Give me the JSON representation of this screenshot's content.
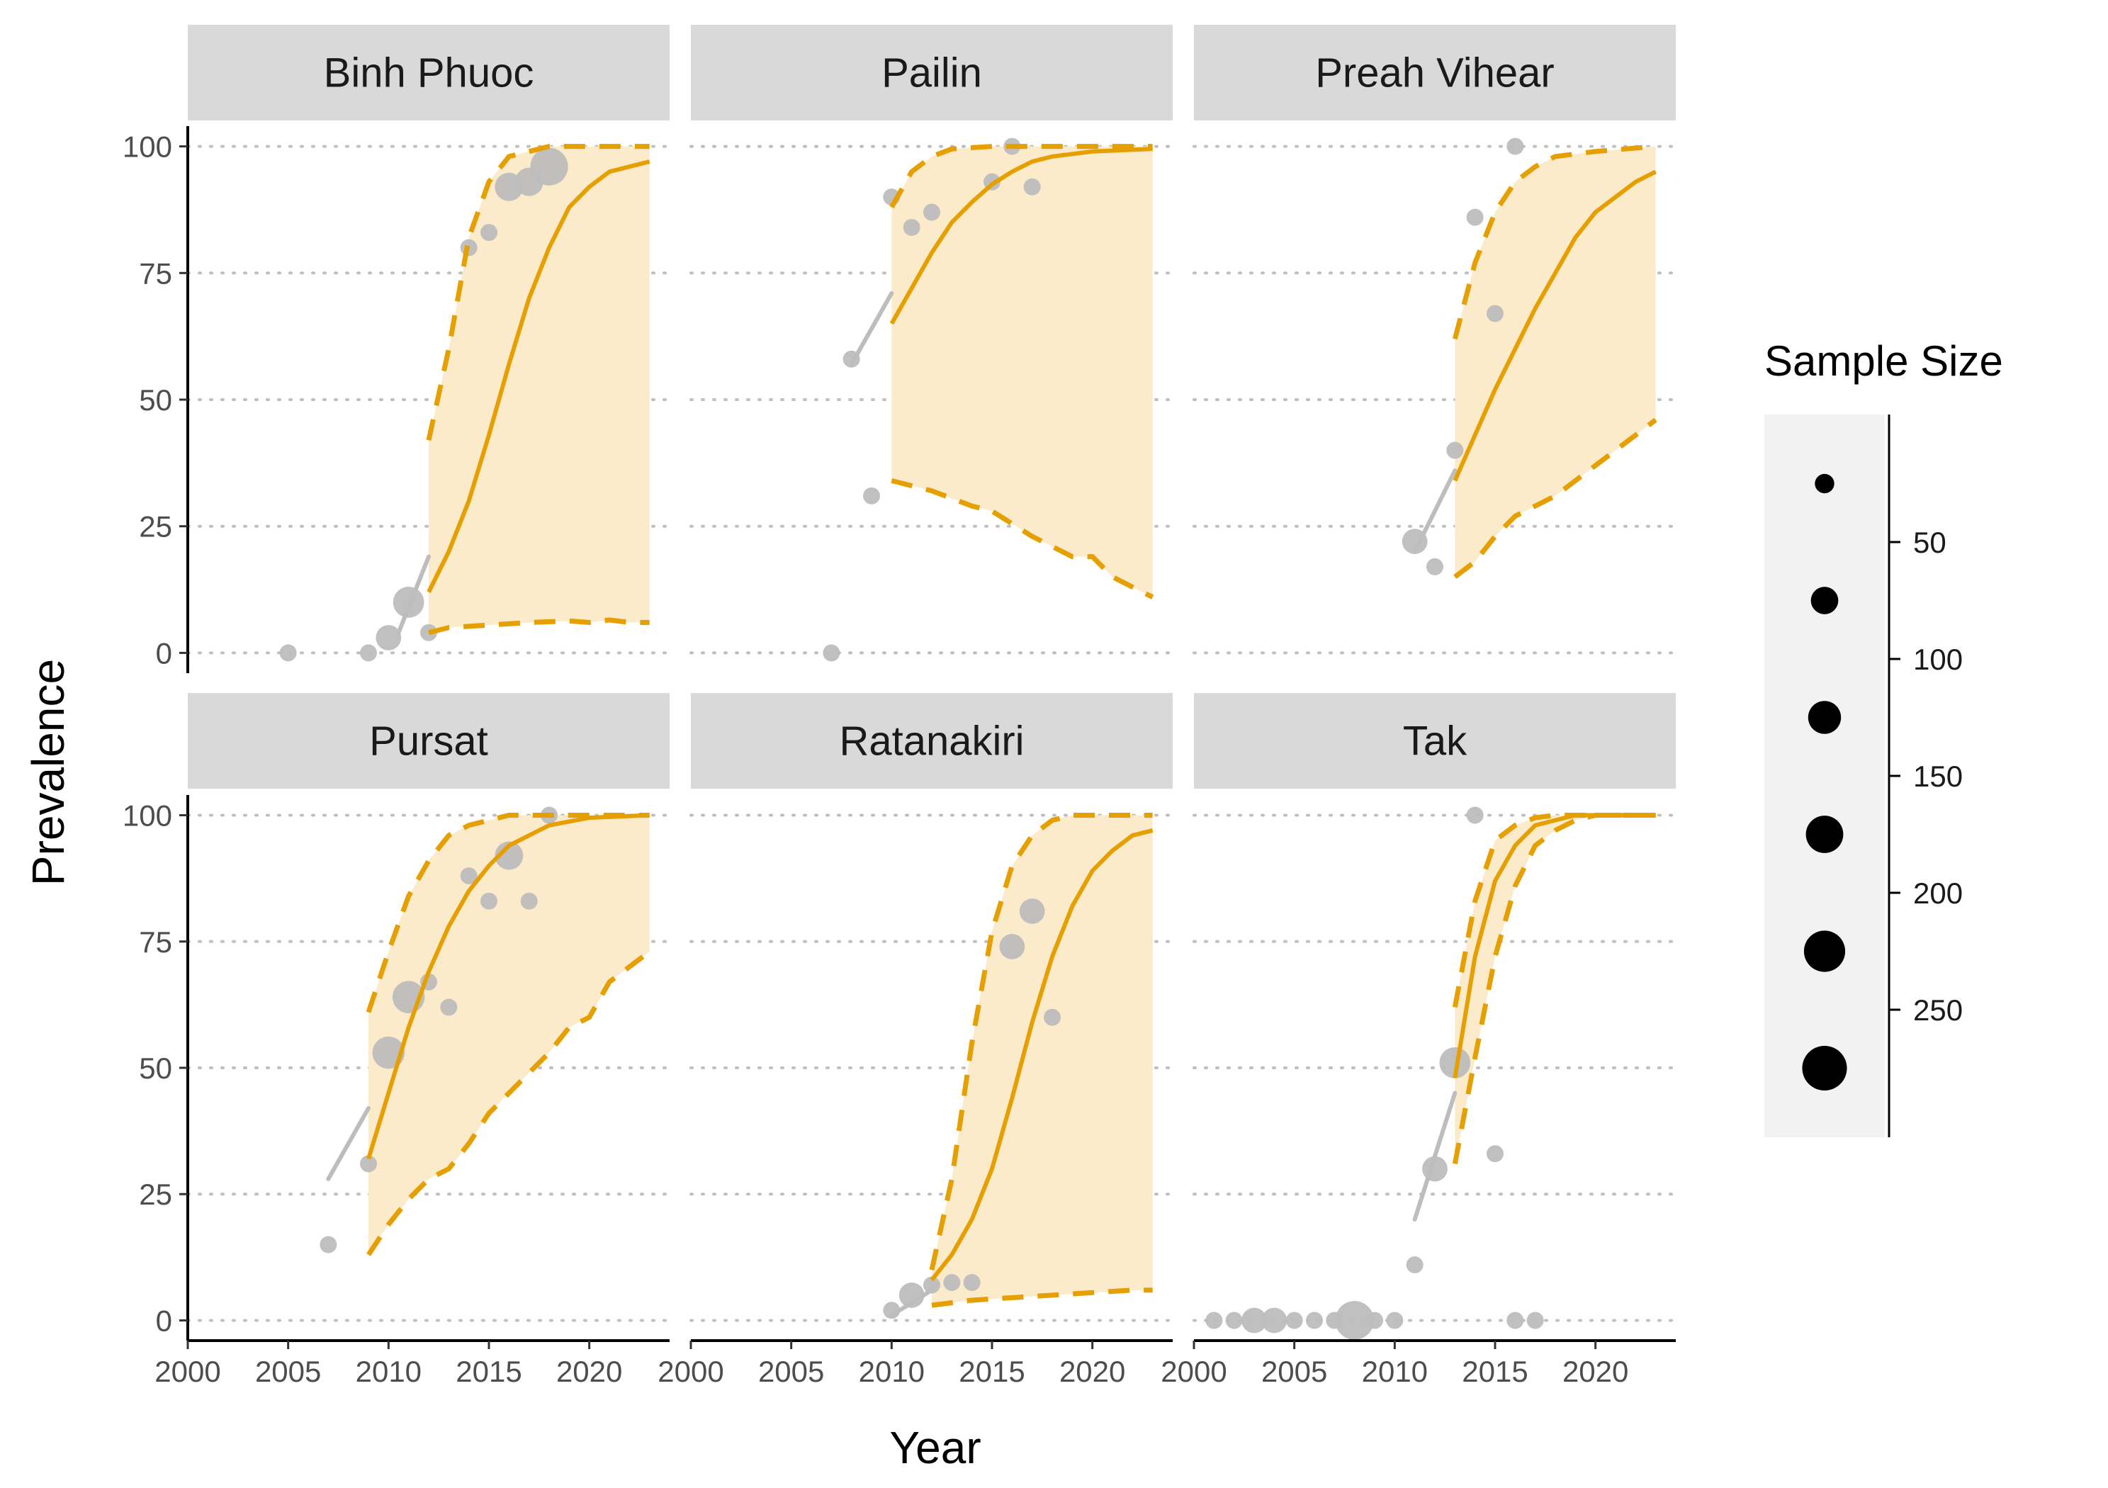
{
  "chart_data": {
    "type": "scatter",
    "title": "",
    "xlabel": "Year",
    "ylabel": "Prevalence",
    "xlim": [
      2000,
      2024
    ],
    "ylim": [
      -4,
      104
    ],
    "x_ticks": [
      2000,
      2005,
      2010,
      2015,
      2020
    ],
    "x_tick_labels": [
      "2000",
      "2005",
      "2010",
      "2015",
      "2020"
    ],
    "y_ticks": [
      0,
      25,
      50,
      75,
      100
    ],
    "y_tick_labels": [
      "0",
      "25",
      "50",
      "75",
      "100"
    ],
    "grid": "horizontal dotted",
    "colors": {
      "points": "#bdbdbd",
      "fit_line": "#e69f00",
      "band_fill": "#fcebca",
      "strip_bg": "#d9d9d9",
      "legend_bg": "#f2f2f2"
    },
    "legend": {
      "title": "Sample Size",
      "placement": "right",
      "labels": [
        "50",
        "100",
        "150",
        "200",
        "250"
      ],
      "label_values": [
        50,
        100,
        150,
        200,
        250
      ],
      "key_values": [
        25,
        75,
        125,
        175,
        225,
        275
      ]
    },
    "panels": [
      {
        "name": "Binh Phuoc",
        "points": [
          {
            "x": 2005,
            "y": 0,
            "n": 20
          },
          {
            "x": 2009,
            "y": 0,
            "n": 20
          },
          {
            "x": 2010,
            "y": 3,
            "n": 60
          },
          {
            "x": 2011,
            "y": 10,
            "n": 100
          },
          {
            "x": 2012,
            "y": 4,
            "n": 20
          },
          {
            "x": 2014,
            "y": 80,
            "n": 20
          },
          {
            "x": 2015,
            "y": 83,
            "n": 20
          },
          {
            "x": 2016,
            "y": 92,
            "n": 80
          },
          {
            "x": 2017,
            "y": 93,
            "n": 80
          },
          {
            "x": 2018,
            "y": 96,
            "n": 160
          }
        ],
        "pre_line": [
          [
            2010.5,
            4
          ],
          [
            2012,
            19
          ]
        ],
        "fit": [
          [
            2012,
            12
          ],
          [
            2013,
            20
          ],
          [
            2014,
            30
          ],
          [
            2015,
            43
          ],
          [
            2016,
            57
          ],
          [
            2017,
            70
          ],
          [
            2018,
            80
          ],
          [
            2019,
            88
          ],
          [
            2020,
            92
          ],
          [
            2021,
            95
          ],
          [
            2022,
            96
          ],
          [
            2023,
            97
          ]
        ],
        "upper": [
          [
            2012,
            42
          ],
          [
            2013,
            60
          ],
          [
            2014,
            82
          ],
          [
            2015,
            93
          ],
          [
            2016,
            98
          ],
          [
            2017,
            99
          ],
          [
            2018,
            100
          ],
          [
            2023,
            100
          ]
        ],
        "lower": [
          [
            2012,
            4
          ],
          [
            2013,
            5
          ],
          [
            2015,
            5.5
          ],
          [
            2017,
            6
          ],
          [
            2019,
            6.3
          ],
          [
            2020,
            6
          ],
          [
            2021,
            6.5
          ],
          [
            2022,
            6
          ],
          [
            2023,
            6
          ]
        ]
      },
      {
        "name": "Pailin",
        "points": [
          {
            "x": 2007,
            "y": 0,
            "n": 20
          },
          {
            "x": 2008,
            "y": 58,
            "n": 20
          },
          {
            "x": 2009,
            "y": 31,
            "n": 20
          },
          {
            "x": 2010,
            "y": 90,
            "n": 20
          },
          {
            "x": 2011,
            "y": 84,
            "n": 20
          },
          {
            "x": 2012,
            "y": 87,
            "n": 20
          },
          {
            "x": 2015,
            "y": 93,
            "n": 20
          },
          {
            "x": 2016,
            "y": 100,
            "n": 20
          },
          {
            "x": 2017,
            "y": 92,
            "n": 20
          }
        ],
        "pre_line": [
          [
            2008,
            57
          ],
          [
            2010,
            71
          ]
        ],
        "fit": [
          [
            2010,
            65
          ],
          [
            2011,
            72
          ],
          [
            2012,
            79
          ],
          [
            2013,
            85
          ],
          [
            2014,
            89
          ],
          [
            2015,
            92.5
          ],
          [
            2016,
            95
          ],
          [
            2017,
            97
          ],
          [
            2018,
            98
          ],
          [
            2020,
            99
          ],
          [
            2023,
            99.5
          ]
        ],
        "upper": [
          [
            2010,
            88
          ],
          [
            2011,
            95
          ],
          [
            2012,
            98
          ],
          [
            2013,
            99.5
          ],
          [
            2015,
            100
          ],
          [
            2023,
            100
          ]
        ],
        "lower": [
          [
            2010,
            34
          ],
          [
            2012,
            32
          ],
          [
            2014,
            29
          ],
          [
            2015,
            28
          ],
          [
            2017,
            23
          ],
          [
            2019,
            19
          ],
          [
            2020,
            19
          ],
          [
            2021,
            15
          ],
          [
            2022,
            13
          ],
          [
            2023,
            11
          ]
        ]
      },
      {
        "name": "Preah Vihear",
        "points": [
          {
            "x": 2011,
            "y": 22,
            "n": 60
          },
          {
            "x": 2012,
            "y": 17,
            "n": 20
          },
          {
            "x": 2013,
            "y": 40,
            "n": 20
          },
          {
            "x": 2014,
            "y": 86,
            "n": 20
          },
          {
            "x": 2015,
            "y": 67,
            "n": 20
          },
          {
            "x": 2016,
            "y": 100,
            "n": 20
          }
        ],
        "pre_line": [
          [
            2011,
            20
          ],
          [
            2013,
            36
          ]
        ],
        "fit": [
          [
            2013,
            34
          ],
          [
            2014,
            43
          ],
          [
            2015,
            52
          ],
          [
            2016,
            60
          ],
          [
            2017,
            68
          ],
          [
            2018,
            75
          ],
          [
            2019,
            82
          ],
          [
            2020,
            87
          ],
          [
            2021,
            90
          ],
          [
            2022,
            93
          ],
          [
            2023,
            95
          ]
        ],
        "upper": [
          [
            2013,
            62
          ],
          [
            2014,
            77
          ],
          [
            2015,
            87
          ],
          [
            2016,
            93
          ],
          [
            2017,
            96
          ],
          [
            2018,
            98
          ],
          [
            2020,
            99
          ],
          [
            2023,
            100
          ]
        ],
        "lower": [
          [
            2013,
            15
          ],
          [
            2014,
            18
          ],
          [
            2015,
            23
          ],
          [
            2016,
            27
          ],
          [
            2017,
            29
          ],
          [
            2018,
            31
          ],
          [
            2019,
            34
          ],
          [
            2020,
            37
          ],
          [
            2021,
            40
          ],
          [
            2022,
            43
          ],
          [
            2023,
            46
          ]
        ]
      },
      {
        "name": "Pursat",
        "points": [
          {
            "x": 2007,
            "y": 15,
            "n": 20
          },
          {
            "x": 2009,
            "y": 31,
            "n": 20
          },
          {
            "x": 2010,
            "y": 53,
            "n": 110
          },
          {
            "x": 2011,
            "y": 64,
            "n": 110
          },
          {
            "x": 2012,
            "y": 67,
            "n": 20
          },
          {
            "x": 2013,
            "y": 62,
            "n": 20
          },
          {
            "x": 2014,
            "y": 88,
            "n": 20
          },
          {
            "x": 2015,
            "y": 83,
            "n": 20
          },
          {
            "x": 2016,
            "y": 92,
            "n": 80
          },
          {
            "x": 2017,
            "y": 83,
            "n": 20
          },
          {
            "x": 2018,
            "y": 100,
            "n": 20
          }
        ],
        "pre_line": [
          [
            2007,
            28
          ],
          [
            2009,
            42
          ]
        ],
        "fit": [
          [
            2009,
            32
          ],
          [
            2010,
            45
          ],
          [
            2011,
            58
          ],
          [
            2012,
            69
          ],
          [
            2013,
            78
          ],
          [
            2014,
            85
          ],
          [
            2015,
            90
          ],
          [
            2016,
            94
          ],
          [
            2017,
            96
          ],
          [
            2018,
            98
          ],
          [
            2020,
            99.5
          ],
          [
            2023,
            100
          ]
        ],
        "upper": [
          [
            2009,
            61
          ],
          [
            2010,
            73
          ],
          [
            2011,
            84
          ],
          [
            2012,
            91
          ],
          [
            2013,
            96
          ],
          [
            2014,
            98
          ],
          [
            2015,
            99
          ],
          [
            2016,
            100
          ],
          [
            2023,
            100
          ]
        ],
        "lower": [
          [
            2009,
            13
          ],
          [
            2010,
            19
          ],
          [
            2011,
            24
          ],
          [
            2012,
            28
          ],
          [
            2013,
            30
          ],
          [
            2014,
            35
          ],
          [
            2015,
            41
          ],
          [
            2016,
            45
          ],
          [
            2017,
            49
          ],
          [
            2018,
            53
          ],
          [
            2019,
            58
          ],
          [
            2020,
            60
          ],
          [
            2021,
            67
          ],
          [
            2022,
            70
          ],
          [
            2023,
            73
          ]
        ]
      },
      {
        "name": "Ratanakiri",
        "points": [
          {
            "x": 2010,
            "y": 2,
            "n": 20
          },
          {
            "x": 2011,
            "y": 5,
            "n": 60
          },
          {
            "x": 2012,
            "y": 7,
            "n": 20
          },
          {
            "x": 2013,
            "y": 7.5,
            "n": 20
          },
          {
            "x": 2014,
            "y": 7.5,
            "n": 20
          },
          {
            "x": 2016,
            "y": 74,
            "n": 60
          },
          {
            "x": 2017,
            "y": 81,
            "n": 60
          },
          {
            "x": 2018,
            "y": 60,
            "n": 20
          }
        ],
        "pre_line": [
          [
            2010,
            1
          ],
          [
            2012,
            6
          ]
        ],
        "fit": [
          [
            2012,
            8
          ],
          [
            2013,
            13
          ],
          [
            2014,
            20
          ],
          [
            2015,
            30
          ],
          [
            2016,
            44
          ],
          [
            2017,
            59
          ],
          [
            2018,
            72
          ],
          [
            2019,
            82
          ],
          [
            2020,
            89
          ],
          [
            2021,
            93
          ],
          [
            2022,
            96
          ],
          [
            2023,
            97
          ]
        ],
        "upper": [
          [
            2012,
            10
          ],
          [
            2013,
            28
          ],
          [
            2014,
            55
          ],
          [
            2015,
            77
          ],
          [
            2016,
            90
          ],
          [
            2017,
            96
          ],
          [
            2018,
            99
          ],
          [
            2019,
            100
          ],
          [
            2023,
            100
          ]
        ],
        "lower": [
          [
            2012,
            3
          ],
          [
            2014,
            4
          ],
          [
            2016,
            4.5
          ],
          [
            2018,
            5
          ],
          [
            2020,
            5.5
          ],
          [
            2022,
            6
          ],
          [
            2023,
            6
          ]
        ]
      },
      {
        "name": "Tak",
        "points": [
          {
            "x": 2001,
            "y": 0,
            "n": 20
          },
          {
            "x": 2002,
            "y": 0,
            "n": 20
          },
          {
            "x": 2003,
            "y": 0,
            "n": 60
          },
          {
            "x": 2004,
            "y": 0,
            "n": 60
          },
          {
            "x": 2005,
            "y": 0,
            "n": 20
          },
          {
            "x": 2006,
            "y": 0,
            "n": 20
          },
          {
            "x": 2007,
            "y": 0,
            "n": 20
          },
          {
            "x": 2008,
            "y": 0,
            "n": 170
          },
          {
            "x": 2009,
            "y": 0,
            "n": 20
          },
          {
            "x": 2010,
            "y": 0,
            "n": 20
          },
          {
            "x": 2011,
            "y": 11,
            "n": 20
          },
          {
            "x": 2012,
            "y": 30,
            "n": 60
          },
          {
            "x": 2013,
            "y": 51,
            "n": 100
          },
          {
            "x": 2014,
            "y": 100,
            "n": 20
          },
          {
            "x": 2015,
            "y": 33,
            "n": 20
          },
          {
            "x": 2016,
            "y": 0,
            "n": 20
          },
          {
            "x": 2017,
            "y": 0,
            "n": 20
          }
        ],
        "pre_line": [
          [
            2011,
            20
          ],
          [
            2013,
            45
          ]
        ],
        "fit": [
          [
            2013,
            48
          ],
          [
            2014,
            72
          ],
          [
            2015,
            87
          ],
          [
            2016,
            94
          ],
          [
            2017,
            98
          ],
          [
            2018,
            99
          ],
          [
            2019,
            100
          ],
          [
            2023,
            100
          ]
        ],
        "upper": [
          [
            2013,
            62
          ],
          [
            2014,
            83
          ],
          [
            2015,
            95
          ],
          [
            2016,
            98
          ],
          [
            2017,
            99.5
          ],
          [
            2018,
            100
          ],
          [
            2023,
            100
          ]
        ],
        "lower": [
          [
            2013,
            31
          ],
          [
            2014,
            52
          ],
          [
            2015,
            72
          ],
          [
            2016,
            86
          ],
          [
            2017,
            94
          ],
          [
            2018,
            97
          ],
          [
            2019,
            99
          ],
          [
            2020,
            100
          ],
          [
            2023,
            100
          ]
        ]
      }
    ]
  }
}
